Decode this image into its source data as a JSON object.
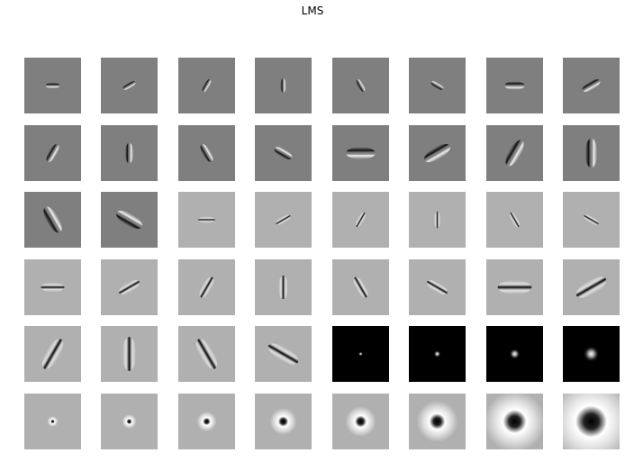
{
  "title": "LMS",
  "filter_bank": {
    "name": "LMS",
    "rows": 6,
    "cols": 8,
    "colors": {
      "bg_dark": "#7f7f7f",
      "bg_mid": "#b0b0b0",
      "bg_black": "#000000"
    },
    "filters": [
      {
        "type": "edge",
        "orient": 0,
        "scale": 1,
        "bg": "dark"
      },
      {
        "type": "edge",
        "orient": 30,
        "scale": 1,
        "bg": "dark"
      },
      {
        "type": "edge",
        "orient": 60,
        "scale": 1,
        "bg": "dark"
      },
      {
        "type": "edge",
        "orient": 90,
        "scale": 1,
        "bg": "dark"
      },
      {
        "type": "edge",
        "orient": 120,
        "scale": 1,
        "bg": "dark"
      },
      {
        "type": "edge",
        "orient": 150,
        "scale": 1,
        "bg": "dark"
      },
      {
        "type": "edge",
        "orient": 0,
        "scale": 2,
        "bg": "dark"
      },
      {
        "type": "edge",
        "orient": 30,
        "scale": 2,
        "bg": "dark"
      },
      {
        "type": "edge",
        "orient": 60,
        "scale": 2,
        "bg": "dark"
      },
      {
        "type": "edge",
        "orient": 90,
        "scale": 2,
        "bg": "dark"
      },
      {
        "type": "edge",
        "orient": 120,
        "scale": 2,
        "bg": "dark"
      },
      {
        "type": "edge",
        "orient": 150,
        "scale": 2,
        "bg": "dark"
      },
      {
        "type": "edge",
        "orient": 0,
        "scale": 3,
        "bg": "dark"
      },
      {
        "type": "edge",
        "orient": 30,
        "scale": 3,
        "bg": "dark"
      },
      {
        "type": "edge",
        "orient": 60,
        "scale": 3,
        "bg": "dark"
      },
      {
        "type": "edge",
        "orient": 90,
        "scale": 3,
        "bg": "dark"
      },
      {
        "type": "edge",
        "orient": 120,
        "scale": 3,
        "bg": "dark"
      },
      {
        "type": "edge",
        "orient": 150,
        "scale": 3,
        "bg": "dark"
      },
      {
        "type": "bar",
        "orient": 0,
        "scale": 1,
        "bg": "mid"
      },
      {
        "type": "bar",
        "orient": 30,
        "scale": 1,
        "bg": "mid"
      },
      {
        "type": "bar",
        "orient": 60,
        "scale": 1,
        "bg": "mid"
      },
      {
        "type": "bar",
        "orient": 90,
        "scale": 1,
        "bg": "mid"
      },
      {
        "type": "bar",
        "orient": 120,
        "scale": 1,
        "bg": "mid"
      },
      {
        "type": "bar",
        "orient": 150,
        "scale": 1,
        "bg": "mid"
      },
      {
        "type": "bar",
        "orient": 0,
        "scale": 2,
        "bg": "mid"
      },
      {
        "type": "bar",
        "orient": 30,
        "scale": 2,
        "bg": "mid"
      },
      {
        "type": "bar",
        "orient": 60,
        "scale": 2,
        "bg": "mid"
      },
      {
        "type": "bar",
        "orient": 90,
        "scale": 2,
        "bg": "mid"
      },
      {
        "type": "bar",
        "orient": 120,
        "scale": 2,
        "bg": "mid"
      },
      {
        "type": "bar",
        "orient": 150,
        "scale": 2,
        "bg": "mid"
      },
      {
        "type": "bar",
        "orient": 0,
        "scale": 3,
        "bg": "mid"
      },
      {
        "type": "bar",
        "orient": 30,
        "scale": 3,
        "bg": "mid"
      },
      {
        "type": "bar",
        "orient": 60,
        "scale": 3,
        "bg": "mid"
      },
      {
        "type": "bar",
        "orient": 90,
        "scale": 3,
        "bg": "mid"
      },
      {
        "type": "bar",
        "orient": 120,
        "scale": 3,
        "bg": "mid"
      },
      {
        "type": "bar",
        "orient": 150,
        "scale": 3,
        "bg": "mid"
      },
      {
        "type": "gauss",
        "scale": 1,
        "bg": "black"
      },
      {
        "type": "gauss",
        "scale": 2,
        "bg": "black"
      },
      {
        "type": "gauss",
        "scale": 3,
        "bg": "black"
      },
      {
        "type": "gauss",
        "scale": 4,
        "bg": "black"
      },
      {
        "type": "log",
        "scale": 1,
        "bg": "mid"
      },
      {
        "type": "log",
        "scale": 2,
        "bg": "mid"
      },
      {
        "type": "log",
        "scale": 3,
        "bg": "mid"
      },
      {
        "type": "log",
        "scale": 4,
        "bg": "mid"
      },
      {
        "type": "log",
        "scale": 5,
        "bg": "mid"
      },
      {
        "type": "log",
        "scale": 6,
        "bg": "mid"
      },
      {
        "type": "log",
        "scale": 7,
        "bg": "mid"
      },
      {
        "type": "log",
        "scale": 8,
        "bg": "mid"
      }
    ]
  }
}
